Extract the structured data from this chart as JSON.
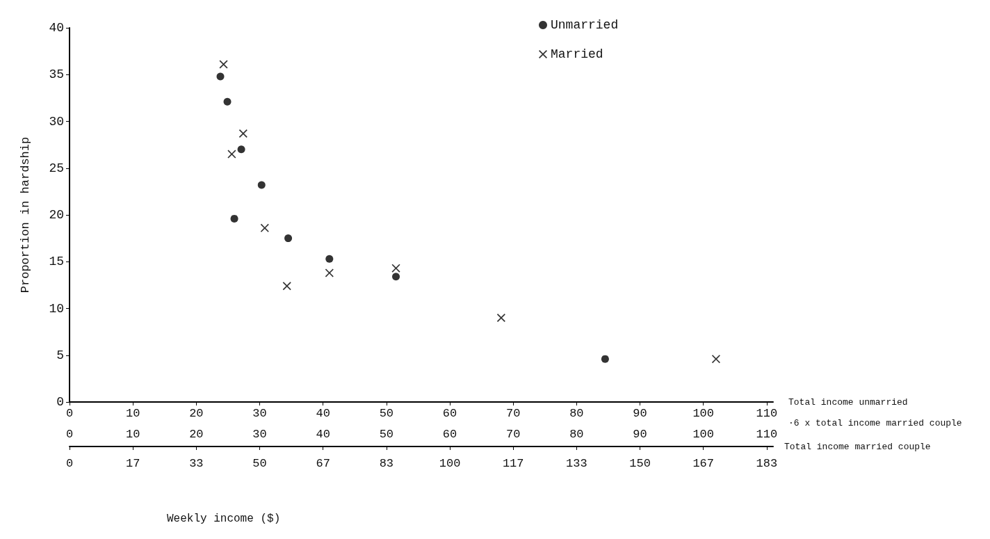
{
  "chart_data": {
    "type": "scatter",
    "xlabel": "Total income unmarried",
    "x2label": "·6 x total income married couple",
    "ylabel": "Proportion in hardship",
    "annotations": [
      "Total income married couple",
      "Weekly income ($)",
      "0",
      "17",
      "33",
      "50",
      "67",
      "83",
      "100",
      "117",
      "133",
      "150",
      "167",
      "183"
    ],
    "xlim": [
      0,
      111
    ],
    "xticks": [
      0,
      10,
      20,
      30,
      40,
      50,
      60,
      70,
      80,
      90,
      100,
      110
    ],
    "x2lim": [
      0,
      111
    ],
    "x2ticks": [
      0,
      10,
      20,
      30,
      40,
      50,
      60,
      70,
      80,
      90,
      100,
      110
    ],
    "ylim": [
      0,
      40
    ],
    "yticks": [
      0,
      5,
      10,
      15,
      20,
      25,
      30,
      35,
      40
    ],
    "grid": false,
    "legend": "top",
    "series": [
      {
        "name": "Unmarried",
        "color": "#000000",
        "marker": "circle",
        "x": [
          23.8,
          24.9,
          27.1,
          26.0,
          30.3,
          34.5,
          41.0,
          51.5,
          84.5
        ],
        "values": [
          34.8,
          32.1,
          27.0,
          19.6,
          23.2,
          17.5,
          15.3,
          13.4,
          4.6
        ]
      },
      {
        "name": "Married",
        "color": "#000000",
        "marker": "cross",
        "x": [
          24.3,
          25.6,
          27.4,
          30.8,
          34.3,
          41.0,
          51.5,
          68.1,
          102.0
        ],
        "values": [
          36.1,
          26.5,
          28.7,
          18.6,
          12.4,
          13.8,
          14.3,
          9.0,
          4.6
        ]
      }
    ]
  }
}
